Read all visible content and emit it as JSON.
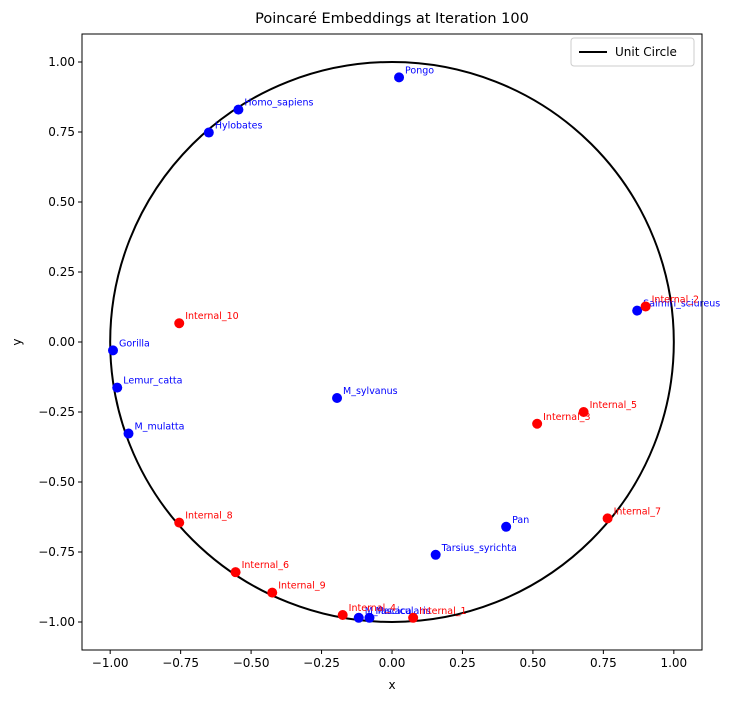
{
  "chart_data": {
    "type": "scatter",
    "title": "Poincaré Embeddings at Iteration 100",
    "xlabel": "x",
    "ylabel": "y",
    "xlim": [
      -1.1,
      1.1
    ],
    "ylim": [
      -1.1,
      1.1
    ],
    "x_ticks": [
      "−1.00",
      "−0.75",
      "−0.50",
      "−0.25",
      "0.00",
      "0.25",
      "0.50",
      "0.75",
      "1.00"
    ],
    "y_ticks": [
      "−1.00",
      "−0.75",
      "−0.50",
      "−0.25",
      "0.00",
      "0.25",
      "0.50",
      "0.75",
      "1.00"
    ],
    "x_tick_values": [
      -1.0,
      -0.75,
      -0.5,
      -0.25,
      0.0,
      0.25,
      0.5,
      0.75,
      1.0
    ],
    "y_tick_values": [
      -1.0,
      -0.75,
      -0.5,
      -0.25,
      0.0,
      0.25,
      0.5,
      0.75,
      1.0
    ],
    "grid": false,
    "legend": {
      "position": "top-right",
      "entries": [
        "Unit Circle"
      ]
    },
    "circle": {
      "center": [
        0,
        0
      ],
      "radius": 1.0,
      "color": "#000000"
    },
    "colors": {
      "leaf": "#0000ff",
      "internal": "#ff0000"
    },
    "leaf_points": [
      {
        "label": "Pongo",
        "x": 0.025,
        "y": 0.945
      },
      {
        "label": "Homo_sapiens",
        "x": -0.545,
        "y": 0.83
      },
      {
        "label": "Hylobates",
        "x": -0.65,
        "y": 0.748
      },
      {
        "label": "Saimiri_sciureus",
        "x": 0.87,
        "y": 0.112
      },
      {
        "label": "Gorilla",
        "x": -0.99,
        "y": -0.03
      },
      {
        "label": "Lemur_catta",
        "x": -0.975,
        "y": -0.163
      },
      {
        "label": "M_sylvanus",
        "x": -0.195,
        "y": -0.2
      },
      {
        "label": "M_mulatta",
        "x": -0.935,
        "y": -0.327
      },
      {
        "label": "Pan",
        "x": 0.405,
        "y": -0.66
      },
      {
        "label": "Tarsius_syrichta",
        "x": 0.155,
        "y": -0.76
      },
      {
        "label": "M_fascicularis",
        "x": -0.118,
        "y": -0.985
      },
      {
        "label": "Macaca",
        "x": -0.08,
        "y": -0.985
      }
    ],
    "internal_points": [
      {
        "label": "Internal_2",
        "x": 0.9,
        "y": 0.127
      },
      {
        "label": "Internal_10",
        "x": -0.755,
        "y": 0.067
      },
      {
        "label": "Internal_5",
        "x": 0.68,
        "y": -0.25
      },
      {
        "label": "Internal_3",
        "x": 0.515,
        "y": -0.292
      },
      {
        "label": "Internal_7",
        "x": 0.765,
        "y": -0.63
      },
      {
        "label": "Internal_8",
        "x": -0.755,
        "y": -0.645
      },
      {
        "label": "Internal_6",
        "x": -0.555,
        "y": -0.822
      },
      {
        "label": "Internal_9",
        "x": -0.425,
        "y": -0.895
      },
      {
        "label": "Internal_4",
        "x": -0.175,
        "y": -0.975
      },
      {
        "label": "Internal_1",
        "x": 0.075,
        "y": -0.985
      }
    ]
  }
}
